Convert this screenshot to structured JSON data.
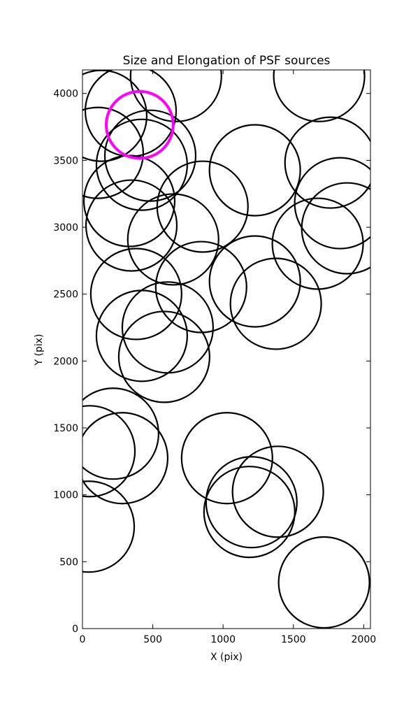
{
  "chart_data": {
    "type": "scatter",
    "title": "Size and Elongation of PSF sources",
    "x_label": "X (pix)",
    "y_label": "Y (pix)",
    "xlim": [
      0,
      2048
    ],
    "ylim": [
      0,
      4176
    ],
    "xticks": [
      0,
      500,
      1000,
      1500,
      2000
    ],
    "yticks": [
      0,
      500,
      1000,
      1500,
      2000,
      2500,
      3000,
      3500,
      4000
    ],
    "series": [
      {
        "color": "#000000",
        "size": 323,
        "line_width": 2.2,
        "x": [
          665,
          1683,
          343,
          134,
          482,
          422,
          109,
          1226,
          1763,
          1832,
          1882,
          1673,
          854,
          333,
          348,
          645,
          844,
          382,
          1226,
          1375,
          606,
          422,
          581,
          218,
          283,
          50,
          45,
          1028,
          1390,
          1202,
          1187,
          1718
        ],
        "y": [
          4130,
          4130,
          3869,
          3833,
          3535,
          3467,
          3556,
          3426,
          3483,
          3180,
          2992,
          2877,
          3154,
          3196,
          3013,
          2909,
          2553,
          2501,
          2595,
          2428,
          2251,
          2188,
          2031,
          1457,
          1274,
          1326,
          762,
          1274,
          1023,
          945,
          872,
          345
        ]
      },
      {
        "color": "#ff00ff",
        "size": 238,
        "line_width": 4,
        "x": [
          407
        ],
        "y": [
          3765
        ]
      }
    ]
  }
}
